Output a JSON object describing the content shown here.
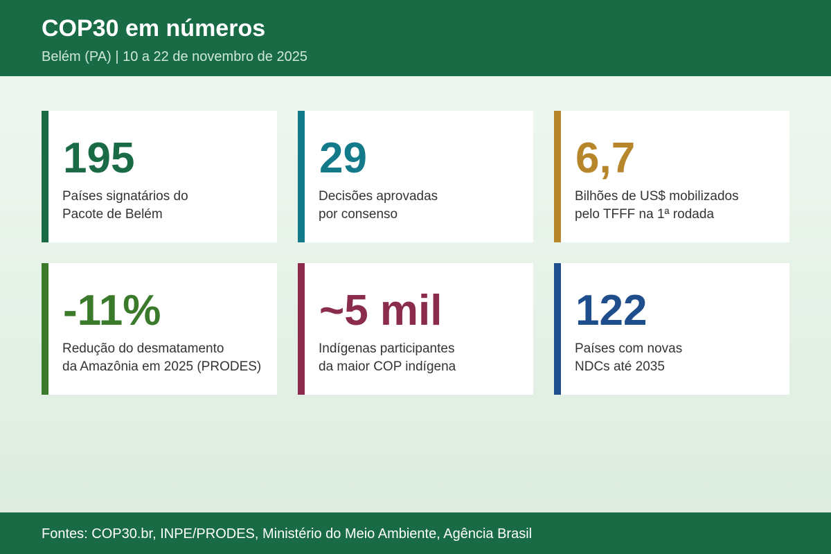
{
  "header": {
    "title": "COP30 em números",
    "subtitle": "Belém (PA) | 10 a 22 de novembro de 2025"
  },
  "cards": [
    {
      "value": "195",
      "line1": "Países signatários do",
      "line2": "Pacote de Belém",
      "color": "#1a6b45"
    },
    {
      "value": "29",
      "line1": "Decisões aprovadas",
      "line2": "por consenso",
      "color": "#137a8a"
    },
    {
      "value": "6,7",
      "line1": "Bilhões de US$ mobilizados",
      "line2": "pelo TFFF na 1ª rodada",
      "color": "#b8862a"
    },
    {
      "value": "-11%",
      "line1": "Redução do desmatamento",
      "line2": "da Amazônia em 2025 (PRODES)",
      "color": "#3b7a2a"
    },
    {
      "value": "~5 mil",
      "line1": "Indígenas participantes",
      "line2": "da maior COP indígena",
      "color": "#8b2c4c"
    },
    {
      "value": "122",
      "line1": "Países com novas",
      "line2": "NDCs até 2035",
      "color": "#1f4e8c"
    }
  ],
  "footer": {
    "sources": "Fontes: COP30.br, INPE/PRODES, Ministério do Meio Ambiente, Agência Brasil"
  }
}
